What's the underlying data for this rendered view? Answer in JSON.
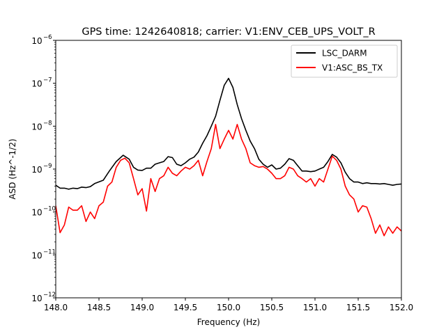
{
  "chart_data": {
    "type": "line",
    "title": "GPS time: 1242640818; carrier: V1:ENV_CEB_UPS_VOLT_R",
    "xlabel": "Frequency (Hz)",
    "ylabel": "ASD (Hz^-1/2)",
    "xlim": [
      148.0,
      152.0
    ],
    "ylim": [
      1e-12,
      1e-06
    ],
    "yscale": "log",
    "grid": false,
    "legend_position": "top-right",
    "x_ticks": [
      "148.0",
      "148.5",
      "149.0",
      "149.5",
      "150.0",
      "150.5",
      "151.0",
      "151.5",
      "152.0"
    ],
    "y_ticks": [
      {
        "base": "10",
        "exp": "−12"
      },
      {
        "base": "10",
        "exp": "−11"
      },
      {
        "base": "10",
        "exp": "−10"
      },
      {
        "base": "10",
        "exp": "−9"
      },
      {
        "base": "10",
        "exp": "−8"
      },
      {
        "base": "10",
        "exp": "−7"
      },
      {
        "base": "10",
        "exp": "−6"
      }
    ],
    "series": [
      {
        "name": "LSC_DARM",
        "color": "#000000",
        "points": [
          [
            148.0,
            4.2e-10
          ],
          [
            148.05,
            3.6e-10
          ],
          [
            148.1,
            3.6e-10
          ],
          [
            148.15,
            3.4e-10
          ],
          [
            148.2,
            3.6e-10
          ],
          [
            148.25,
            3.5e-10
          ],
          [
            148.3,
            3.8e-10
          ],
          [
            148.35,
            3.7e-10
          ],
          [
            148.4,
            3.9e-10
          ],
          [
            148.45,
            4.6e-10
          ],
          [
            148.55,
            5.5e-10
          ],
          [
            148.62,
            9e-10
          ],
          [
            148.7,
            1.5e-09
          ],
          [
            148.78,
            2.1e-09
          ],
          [
            148.85,
            1.7e-09
          ],
          [
            148.9,
            1.1e-09
          ],
          [
            148.95,
            9.5e-10
          ],
          [
            149.0,
            9.3e-10
          ],
          [
            149.05,
            1.05e-09
          ],
          [
            149.1,
            1.05e-09
          ],
          [
            149.15,
            1.3e-09
          ],
          [
            149.2,
            1.4e-09
          ],
          [
            149.25,
            1.5e-09
          ],
          [
            149.3,
            1.95e-09
          ],
          [
            149.35,
            1.85e-09
          ],
          [
            149.4,
            1.3e-09
          ],
          [
            149.45,
            1.2e-09
          ],
          [
            149.5,
            1.4e-09
          ],
          [
            149.55,
            1.7e-09
          ],
          [
            149.6,
            1.9e-09
          ],
          [
            149.65,
            2.5e-09
          ],
          [
            149.7,
            4e-09
          ],
          [
            149.75,
            6e-09
          ],
          [
            149.8,
            1e-08
          ],
          [
            149.85,
            1.7e-08
          ],
          [
            149.9,
            4e-08
          ],
          [
            149.95,
            9e-08
          ],
          [
            150.0,
            1.3e-07
          ],
          [
            150.05,
            8e-08
          ],
          [
            150.1,
            3.2e-08
          ],
          [
            150.15,
            1.5e-08
          ],
          [
            150.2,
            8e-09
          ],
          [
            150.25,
            4.5e-09
          ],
          [
            150.3,
            3e-09
          ],
          [
            150.35,
            1.7e-09
          ],
          [
            150.4,
            1.3e-09
          ],
          [
            150.45,
            1.1e-09
          ],
          [
            150.5,
            1.25e-09
          ],
          [
            150.55,
            1e-09
          ],
          [
            150.6,
            1.05e-09
          ],
          [
            150.65,
            1.3e-09
          ],
          [
            150.7,
            1.75e-09
          ],
          [
            150.75,
            1.6e-09
          ],
          [
            150.8,
            1.2e-09
          ],
          [
            150.85,
            9e-10
          ],
          [
            150.9,
            9e-10
          ],
          [
            150.95,
            8.7e-10
          ],
          [
            151.0,
            9e-10
          ],
          [
            151.05,
            1e-09
          ],
          [
            151.1,
            1.1e-09
          ],
          [
            151.15,
            1.5e-09
          ],
          [
            151.2,
            2.2e-09
          ],
          [
            151.25,
            1.9e-09
          ],
          [
            151.3,
            1.4e-09
          ],
          [
            151.35,
            8.5e-10
          ],
          [
            151.4,
            6e-10
          ],
          [
            151.45,
            5e-10
          ],
          [
            151.5,
            5e-10
          ],
          [
            151.55,
            4.6e-10
          ],
          [
            151.6,
            4.8e-10
          ],
          [
            151.65,
            4.6e-10
          ],
          [
            151.7,
            4.6e-10
          ],
          [
            151.75,
            4.5e-10
          ],
          [
            151.8,
            4.6e-10
          ],
          [
            151.85,
            4.4e-10
          ],
          [
            151.9,
            4.2e-10
          ],
          [
            151.95,
            4.4e-10
          ],
          [
            152.0,
            4.5e-10
          ]
        ]
      },
      {
        "name": "V1:ASC_BS_TX",
        "color": "#ff0000",
        "points": [
          [
            148.0,
            1.4e-10
          ],
          [
            148.05,
            3.3e-11
          ],
          [
            148.1,
            5e-11
          ],
          [
            148.15,
            1.3e-10
          ],
          [
            148.2,
            1.1e-10
          ],
          [
            148.25,
            1.1e-10
          ],
          [
            148.3,
            1.4e-10
          ],
          [
            148.35,
            6e-11
          ],
          [
            148.4,
            1e-10
          ],
          [
            148.45,
            7e-11
          ],
          [
            148.5,
            1.4e-10
          ],
          [
            148.55,
            1.7e-10
          ],
          [
            148.6,
            4e-10
          ],
          [
            148.65,
            5e-10
          ],
          [
            148.7,
            1.1e-09
          ],
          [
            148.75,
            1.6e-09
          ],
          [
            148.8,
            1.8e-09
          ],
          [
            148.85,
            1.4e-09
          ],
          [
            148.9,
            6e-10
          ],
          [
            148.95,
            2.5e-10
          ],
          [
            149.0,
            3.5e-10
          ],
          [
            149.05,
            1.05e-10
          ],
          [
            149.1,
            6e-10
          ],
          [
            149.15,
            3e-10
          ],
          [
            149.2,
            6e-10
          ],
          [
            149.25,
            7e-10
          ],
          [
            149.3,
            1.1e-09
          ],
          [
            149.35,
            8e-10
          ],
          [
            149.4,
            7e-10
          ],
          [
            149.45,
            9e-10
          ],
          [
            149.5,
            1.1e-09
          ],
          [
            149.55,
            1e-09
          ],
          [
            149.6,
            1.2e-09
          ],
          [
            149.65,
            1.6e-09
          ],
          [
            149.7,
            7e-10
          ],
          [
            149.75,
            1.5e-09
          ],
          [
            149.8,
            3e-09
          ],
          [
            149.85,
            1.1e-08
          ],
          [
            149.9,
            3e-09
          ],
          [
            149.95,
            5e-09
          ],
          [
            150.0,
            8e-09
          ],
          [
            150.05,
            5e-09
          ],
          [
            150.1,
            1.1e-08
          ],
          [
            150.15,
            5e-09
          ],
          [
            150.2,
            3e-09
          ],
          [
            150.25,
            1.4e-09
          ],
          [
            150.3,
            1.2e-09
          ],
          [
            150.35,
            1.1e-09
          ],
          [
            150.4,
            1.15e-09
          ],
          [
            150.45,
            1e-09
          ],
          [
            150.5,
            8e-10
          ],
          [
            150.55,
            6e-10
          ],
          [
            150.6,
            6e-10
          ],
          [
            150.65,
            7e-10
          ],
          [
            150.7,
            1.1e-09
          ],
          [
            150.75,
            1e-09
          ],
          [
            150.8,
            7e-10
          ],
          [
            150.85,
            6e-10
          ],
          [
            150.9,
            5e-10
          ],
          [
            150.95,
            6e-10
          ],
          [
            151.0,
            4e-10
          ],
          [
            151.05,
            6e-10
          ],
          [
            151.1,
            5e-10
          ],
          [
            151.15,
            1e-09
          ],
          [
            151.2,
            2e-09
          ],
          [
            151.25,
            1.6e-09
          ],
          [
            151.3,
            1e-09
          ],
          [
            151.35,
            4e-10
          ],
          [
            151.4,
            2.5e-10
          ],
          [
            151.45,
            2e-10
          ],
          [
            151.5,
            1e-10
          ],
          [
            151.55,
            1.4e-10
          ],
          [
            151.6,
            1.3e-10
          ],
          [
            151.65,
            7e-11
          ],
          [
            151.7,
            3.2e-11
          ],
          [
            151.75,
            5e-11
          ],
          [
            151.8,
            2.8e-11
          ],
          [
            151.85,
            4.5e-11
          ],
          [
            151.9,
            3.2e-11
          ],
          [
            151.95,
            4.5e-11
          ],
          [
            152.0,
            3.6e-11
          ]
        ]
      }
    ]
  }
}
